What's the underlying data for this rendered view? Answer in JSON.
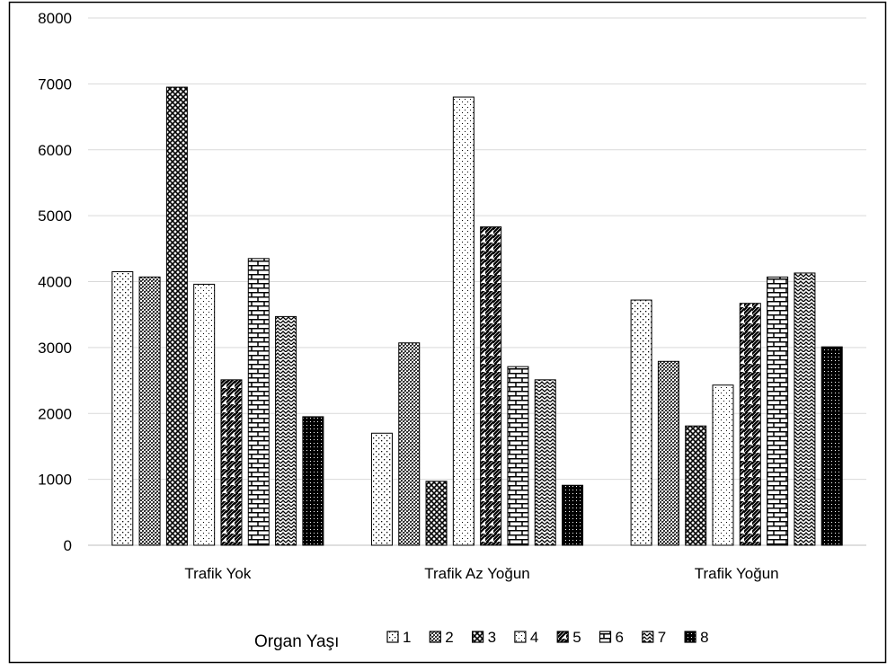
{
  "chart_data": {
    "type": "bar",
    "categories": [
      "Trafik Yok",
      "Trafik Az Yoğun",
      "Trafik Yoğun"
    ],
    "ylim": [
      0,
      8000
    ],
    "yticks": [
      0,
      1000,
      2000,
      3000,
      4000,
      5000,
      6000,
      7000,
      8000
    ],
    "grid": true,
    "legend_title": "Organ Yaşı",
    "legend_position": "bottom",
    "series": [
      {
        "name": "1",
        "pattern": "sparse-dots",
        "values": [
          4150,
          1700,
          3720
        ]
      },
      {
        "name": "2",
        "pattern": "dense-dots",
        "values": [
          4070,
          3070,
          2790
        ]
      },
      {
        "name": "3",
        "pattern": "checker-diamond",
        "values": [
          6950,
          970,
          1810
        ]
      },
      {
        "name": "4",
        "pattern": "light-dots",
        "values": [
          3960,
          6800,
          2430
        ]
      },
      {
        "name": "5",
        "pattern": "wide-diagonal",
        "values": [
          2510,
          4830,
          3670
        ]
      },
      {
        "name": "6",
        "pattern": "brick",
        "values": [
          4350,
          2710,
          4070
        ]
      },
      {
        "name": "7",
        "pattern": "wave",
        "values": [
          3470,
          2510,
          4130
        ]
      },
      {
        "name": "8",
        "pattern": "solid-dark-dots",
        "values": [
          1950,
          910,
          3010
        ]
      }
    ],
    "colors": {
      "stroke": "#000000",
      "grid": "#d9d9d9",
      "frame": "#000000"
    }
  }
}
